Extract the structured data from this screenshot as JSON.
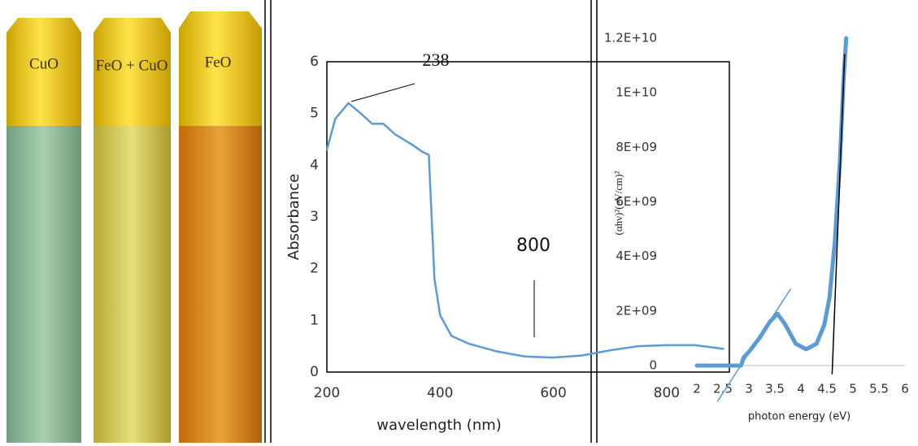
{
  "photo": {
    "labels": [
      "CuO",
      "FeO + CuO",
      "FeO"
    ]
  },
  "chart_data": [
    {
      "type": "line",
      "y_label": "Absorbance",
      "x_label": "wavelength (nm)",
      "xlim": [
        200,
        900
      ],
      "ylim": [
        0,
        6
      ],
      "xticks": [
        200,
        400,
        600,
        800
      ],
      "yticks": [
        0,
        1,
        2,
        3,
        4,
        5,
        6
      ],
      "annotations": [
        "238",
        "800"
      ],
      "series": [
        {
          "color": "#5b9bd5",
          "x": [
            200,
            215,
            238,
            260,
            280,
            300,
            320,
            350,
            370,
            380,
            385,
            390,
            400,
            420,
            450,
            500,
            550,
            600,
            650,
            700,
            750,
            800,
            850,
            900
          ],
          "values": [
            4.3,
            4.9,
            5.2,
            5.0,
            4.8,
            4.8,
            4.6,
            4.4,
            4.25,
            4.2,
            3.0,
            1.8,
            1.1,
            0.7,
            0.55,
            0.4,
            0.3,
            0.28,
            0.32,
            0.42,
            0.5,
            0.52,
            0.52,
            0.45
          ]
        }
      ]
    },
    {
      "type": "line",
      "y_label": "(αhν)²(eV/cm)²",
      "x_label": "photon energy (eV)",
      "xlim": [
        2,
        6
      ],
      "ylim": [
        0,
        12000000000
      ],
      "xticks": [
        2,
        2.5,
        3,
        3.5,
        4,
        4.5,
        5,
        5.5,
        6
      ],
      "yticks": [
        0,
        {
          "value": 2000000000,
          "label": "2E+09"
        },
        {
          "value": 4000000000,
          "label": "4E+09"
        },
        {
          "value": 6000000000,
          "label": "6E+09"
        },
        {
          "value": 8000000000,
          "label": "8E+09"
        },
        {
          "value": 10000000000,
          "label": "1E+10"
        },
        {
          "value": 12000000000,
          "label": "1.2E+10"
        }
      ],
      "series": [
        {
          "color": "#5b9bd5",
          "width": 5,
          "x": [
            2,
            2.5,
            2.85,
            2.9,
            3.0,
            3.2,
            3.4,
            3.55,
            3.7,
            3.9,
            4.1,
            4.3,
            4.45,
            4.55,
            4.65,
            4.75,
            4.82,
            4.87
          ],
          "values": [
            0,
            0,
            0,
            300000000,
            500000000,
            1000000000,
            1600000000,
            1900000000,
            1500000000,
            800000000,
            600000000,
            800000000,
            1500000000,
            2500000000,
            4500000000,
            7500000000,
            10500000000,
            12000000000
          ]
        },
        {
          "color": "#5b9bd5",
          "width": 1.5,
          "x": [
            2.4,
            3.8
          ],
          "values": [
            -1300000000,
            2800000000
          ]
        },
        {
          "color": "#000000",
          "width": 1.5,
          "x": [
            4.6,
            4.84
          ],
          "values": [
            -300000000,
            11400000000
          ]
        }
      ]
    }
  ]
}
